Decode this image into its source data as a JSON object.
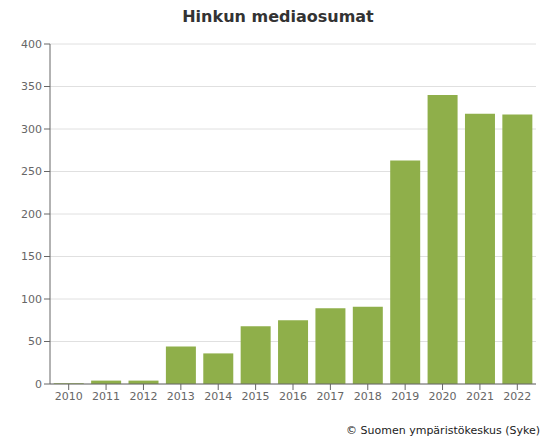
{
  "chart_data": {
    "type": "bar",
    "title": "Hinkun mediaosumat",
    "categories": [
      "2010",
      "2011",
      "2012",
      "2013",
      "2014",
      "2015",
      "2016",
      "2017",
      "2018",
      "2019",
      "2020",
      "2021",
      "2022"
    ],
    "values": [
      1,
      4,
      4,
      44,
      36,
      68,
      75,
      89,
      91,
      263,
      340,
      318,
      317
    ],
    "color": "#8faf4a",
    "ylim": [
      0,
      400
    ],
    "yticks": [
      0,
      50,
      100,
      150,
      200,
      250,
      300,
      350,
      400
    ],
    "grid": true,
    "caption": "© Suomen ympäristökeskus (Syke)"
  }
}
